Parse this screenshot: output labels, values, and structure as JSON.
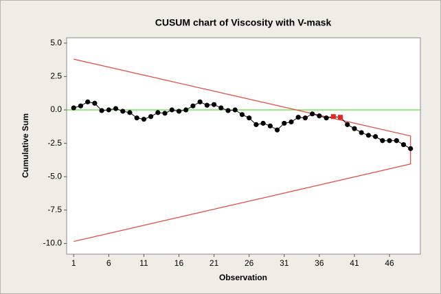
{
  "chart_data": {
    "type": "line",
    "title": "CUSUM chart of Viscosity with V-mask",
    "x_label": "Observation",
    "y_label": "Cumulative Sum",
    "x": [
      1,
      2,
      3,
      4,
      5,
      6,
      7,
      8,
      9,
      10,
      11,
      12,
      13,
      14,
      15,
      16,
      17,
      18,
      19,
      20,
      21,
      22,
      23,
      24,
      25,
      26,
      27,
      28,
      29,
      30,
      31,
      32,
      33,
      34,
      35,
      36,
      37,
      38,
      39,
      40,
      41,
      42,
      43,
      44,
      45,
      46,
      47,
      48,
      49
    ],
    "series": [
      {
        "color": "#000000",
        "values": [
          0.15,
          0.3,
          0.6,
          0.5,
          -0.05,
          0.0,
          0.1,
          -0.1,
          -0.2,
          -0.6,
          -0.7,
          -0.5,
          -0.2,
          -0.25,
          0.0,
          -0.1,
          0.0,
          0.3,
          0.6,
          0.35,
          0.4,
          0.15,
          -0.05,
          0.0,
          -0.35,
          -0.6,
          -1.1,
          -1.0,
          -1.2,
          -1.5,
          -1.0,
          -0.9,
          -0.55,
          -0.6,
          -0.3,
          -0.45,
          -0.6,
          -0.5,
          -0.55,
          -1.1,
          -1.4,
          -1.7,
          -1.9,
          -2.0,
          -2.3,
          -2.3,
          -2.3,
          -2.6,
          -2.9
        ]
      }
    ],
    "highlight_color": "#e8262a",
    "highlighted_x": [
      38,
      39
    ],
    "v_mask": {
      "color": "#e8423a",
      "x": [
        1,
        49,
        49,
        1
      ],
      "values": [
        3.8,
        -1.95,
        -4.05,
        -9.85
      ]
    },
    "center_line": {
      "value": 0,
      "color": "#5cdc3c"
    },
    "xlim": [
      0,
      50.4
    ],
    "ylim": [
      -10.8,
      5.4
    ],
    "xticks": [
      1,
      6,
      11,
      16,
      21,
      26,
      31,
      36,
      41,
      46
    ],
    "yticks": [
      {
        "value": 5,
        "label": "5.0"
      },
      {
        "value": 2.5,
        "label": "2.5"
      },
      {
        "value": 0,
        "label": "0.0"
      },
      {
        "value": -2.5,
        "label": "-2.5"
      },
      {
        "value": -5,
        "label": "-5.0"
      },
      {
        "value": -7.5,
        "label": "-7.5"
      },
      {
        "value": -10,
        "label": "-10.0"
      }
    ]
  }
}
